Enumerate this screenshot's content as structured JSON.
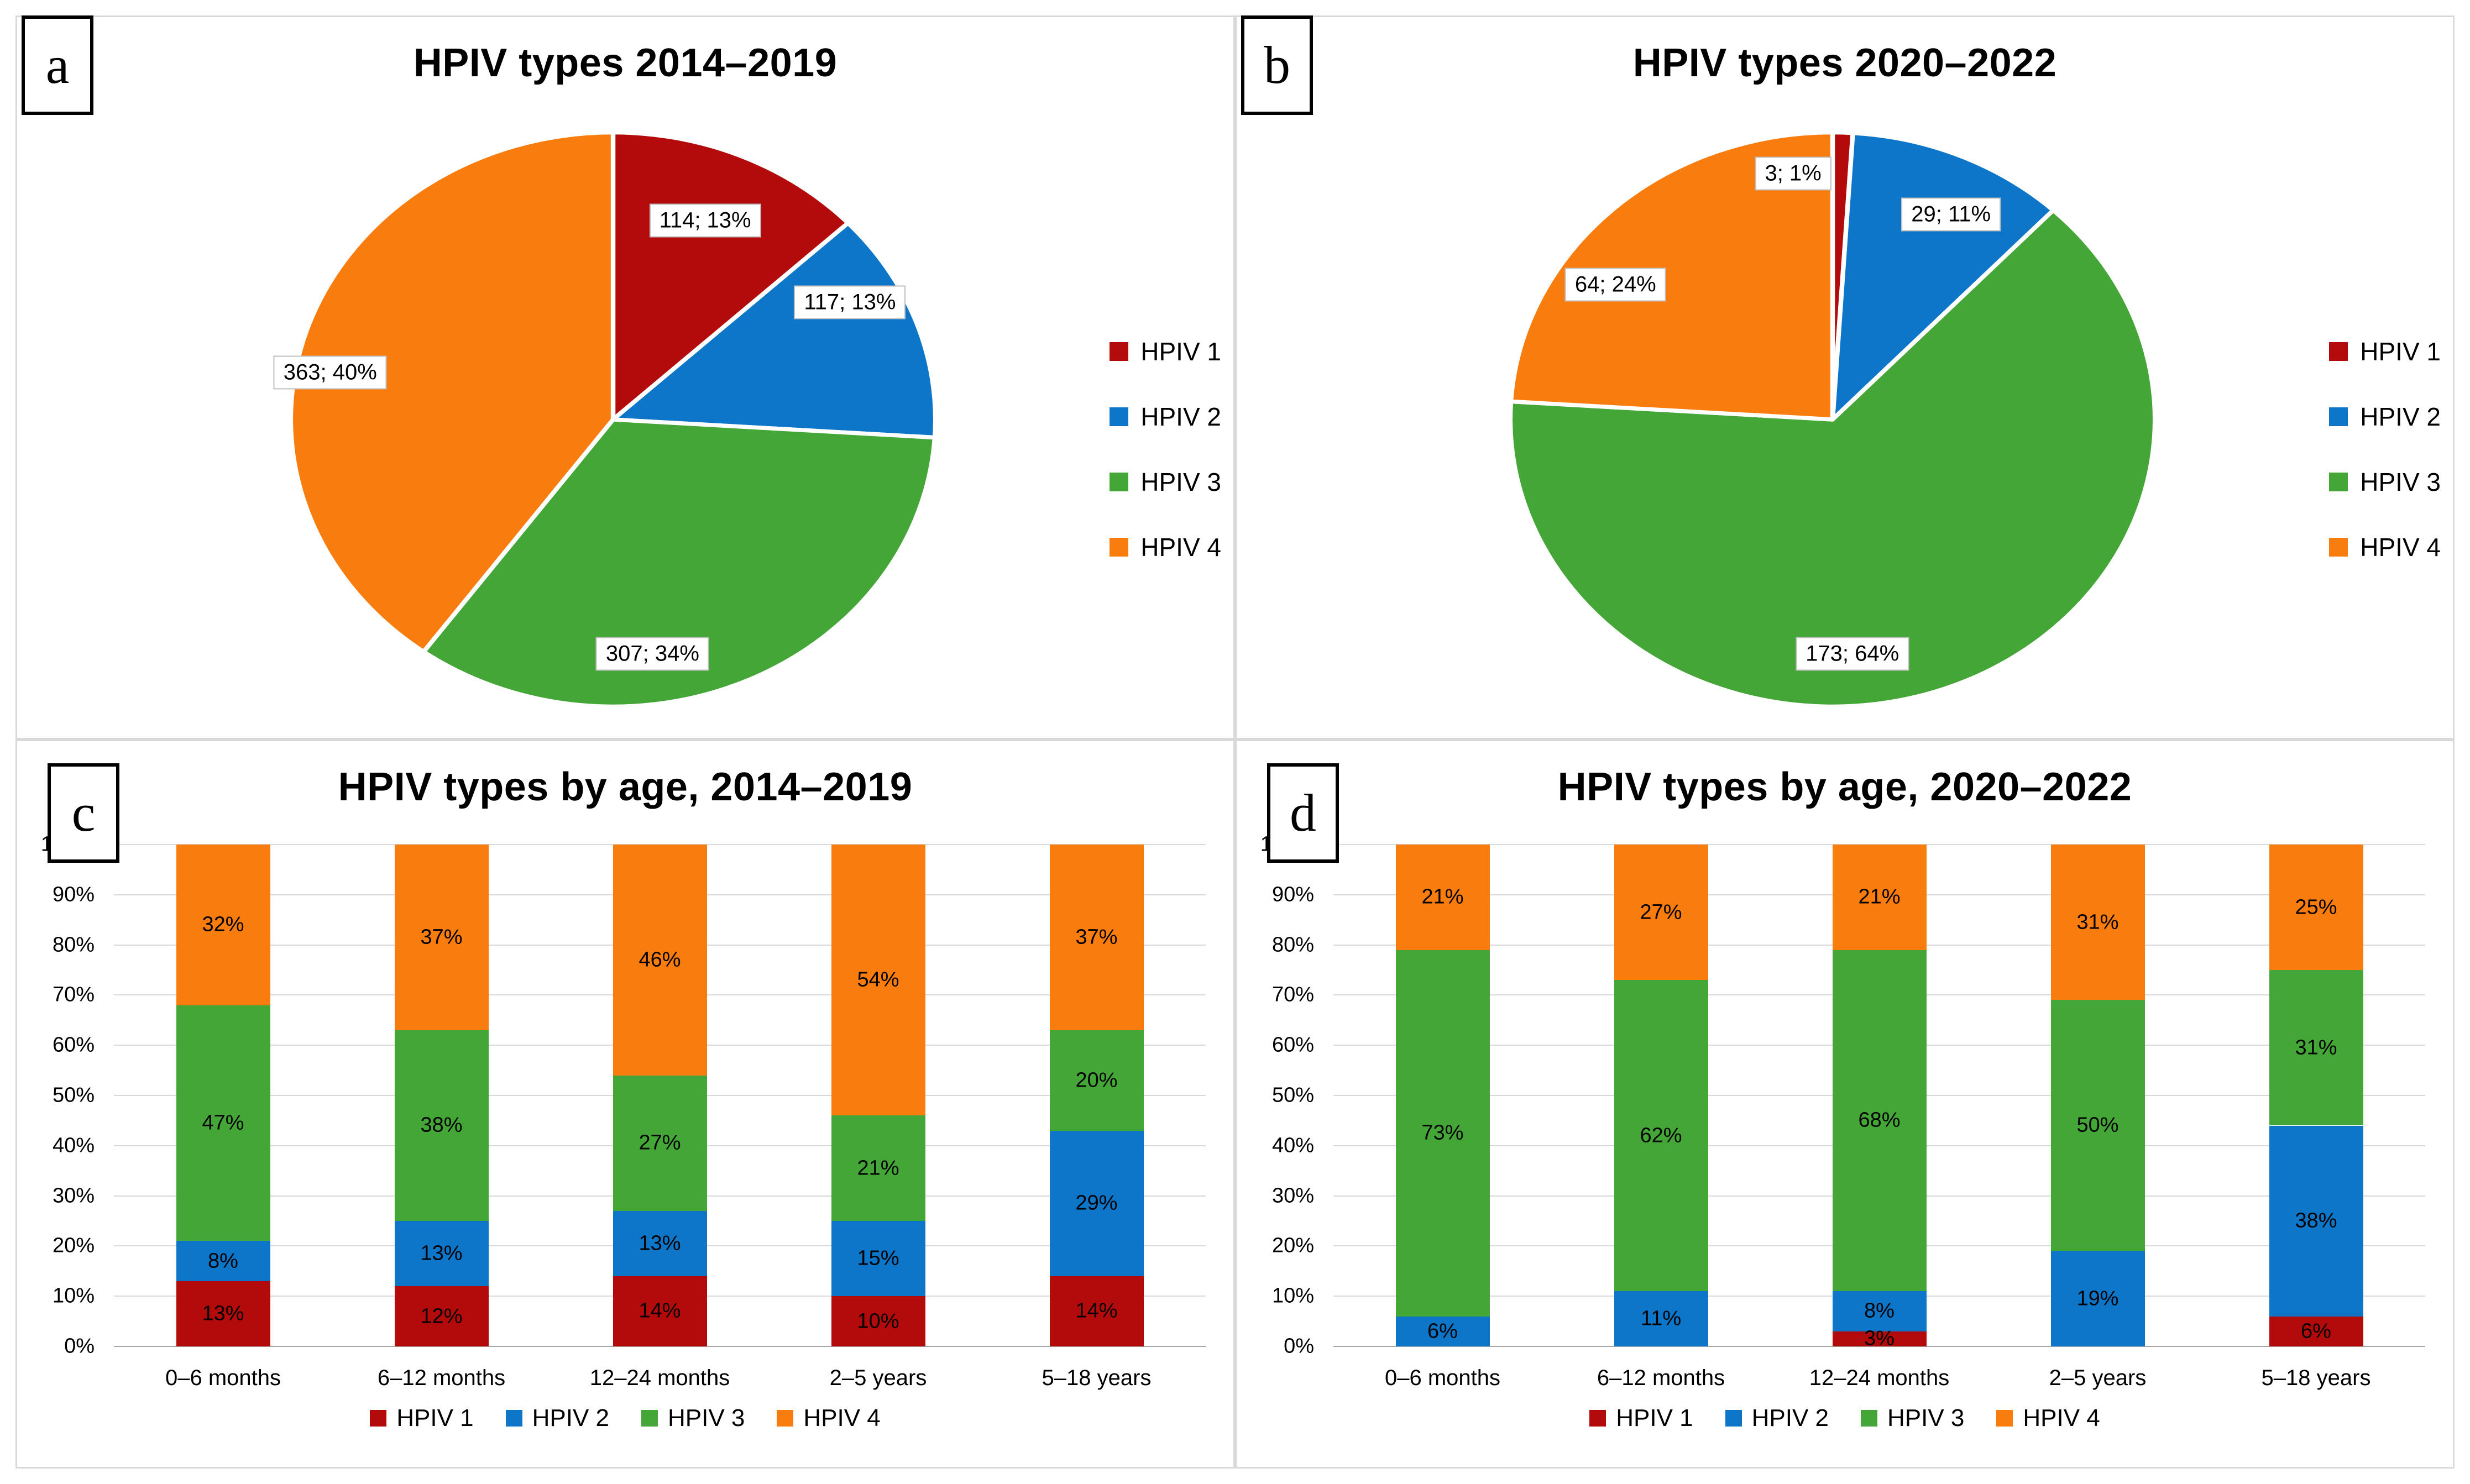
{
  "legend_labels": [
    "HPIV 1",
    "HPIV 2",
    "HPIV 3",
    "HPIV 4"
  ],
  "colors": {
    "series": [
      "#B30B0B",
      "#0D76C8",
      "#44A636",
      "#F97D0E"
    ],
    "grid": "#D9D9D9",
    "axis": "#A6A6A6",
    "panel_border": "#D9D9D9",
    "label_box_border": "#BFBFBF"
  },
  "chart_data": [
    {
      "letter": "a",
      "type": "pie",
      "title": "HPIV types 2014–2019",
      "legend_position": "right",
      "series_names": [
        "HPIV 1",
        "HPIV 2",
        "HPIV 3",
        "HPIV 4"
      ],
      "values": [
        114,
        117,
        307,
        363
      ],
      "percents": [
        13,
        13,
        34,
        40
      ],
      "slice_labels": [
        "114; 13%",
        "117; 13%",
        "307; 34%",
        "363; 40%"
      ],
      "start_angle_deg": 0,
      "label_anchors": [
        {
          "x": 64,
          "y": 16
        },
        {
          "x": 86,
          "y": 30
        },
        {
          "x": 56,
          "y": 90
        },
        {
          "x": 7,
          "y": 42
        }
      ]
    },
    {
      "letter": "b",
      "type": "pie",
      "title": "HPIV types 2020–2022",
      "legend_position": "right",
      "series_names": [
        "HPIV 1",
        "HPIV 2",
        "HPIV 3",
        "HPIV 4"
      ],
      "values": [
        3,
        29,
        173,
        64
      ],
      "percents": [
        1,
        11,
        64,
        24
      ],
      "slice_labels": [
        "3; 1%",
        "29; 11%",
        "173; 64%",
        "64; 24%"
      ],
      "start_angle_deg": 0,
      "label_anchors": [
        {
          "x": 44,
          "y": 8
        },
        {
          "x": 68,
          "y": 15
        },
        {
          "x": 53,
          "y": 90
        },
        {
          "x": 17,
          "y": 27
        }
      ]
    },
    {
      "letter": "c",
      "type": "stacked-bar-100",
      "title": "HPIV types by age, 2014–2019",
      "legend_position": "bottom",
      "grid": true,
      "ylim": [
        0,
        100
      ],
      "y_ticks": [
        "0%",
        "10%",
        "20%",
        "30%",
        "40%",
        "50%",
        "60%",
        "70%",
        "80%",
        "90%",
        "100%"
      ],
      "categories": [
        "0–6 months",
        "6–12 months",
        "12–24 months",
        "2–5 years",
        "5–18 years"
      ],
      "series": [
        {
          "name": "HPIV 1",
          "values": [
            13,
            12,
            14,
            10,
            14
          ],
          "labels": [
            "13%",
            "12%",
            "14%",
            "10%",
            "14%"
          ]
        },
        {
          "name": "HPIV 2",
          "values": [
            8,
            13,
            13,
            15,
            29
          ],
          "labels": [
            "8%",
            "13%",
            "13%",
            "15%",
            "29%"
          ]
        },
        {
          "name": "HPIV 3",
          "values": [
            47,
            38,
            27,
            21,
            20
          ],
          "labels": [
            "47%",
            "38%",
            "27%",
            "21%",
            "20%"
          ]
        },
        {
          "name": "HPIV 4",
          "values": [
            32,
            37,
            46,
            54,
            37
          ],
          "labels": [
            "32%",
            "37%",
            "46%",
            "54%",
            "37%"
          ]
        }
      ]
    },
    {
      "letter": "d",
      "type": "stacked-bar-100",
      "title": "HPIV types by age, 2020–2022",
      "legend_position": "bottom",
      "grid": true,
      "ylim": [
        0,
        100
      ],
      "y_ticks": [
        "0%",
        "10%",
        "20%",
        "30%",
        "40%",
        "50%",
        "60%",
        "70%",
        "80%",
        "90%",
        "100%"
      ],
      "categories": [
        "0–6 months",
        "6–12 months",
        "12–24 months",
        "2–5 years",
        "5–18 years"
      ],
      "series": [
        {
          "name": "HPIV 1",
          "values": [
            0,
            0,
            3,
            0,
            6
          ],
          "labels": [
            "",
            "",
            "3%",
            "",
            "6%"
          ]
        },
        {
          "name": "HPIV 2",
          "values": [
            6,
            11,
            8,
            19,
            38
          ],
          "labels": [
            "6%",
            "11%",
            "8%",
            "19%",
            "38%"
          ]
        },
        {
          "name": "HPIV 3",
          "values": [
            73,
            62,
            68,
            50,
            31
          ],
          "labels": [
            "73%",
            "62%",
            "68%",
            "50%",
            "31%"
          ]
        },
        {
          "name": "HPIV 4",
          "values": [
            21,
            27,
            21,
            31,
            25
          ],
          "labels": [
            "21%",
            "27%",
            "21%",
            "31%",
            "25%"
          ]
        }
      ]
    }
  ]
}
